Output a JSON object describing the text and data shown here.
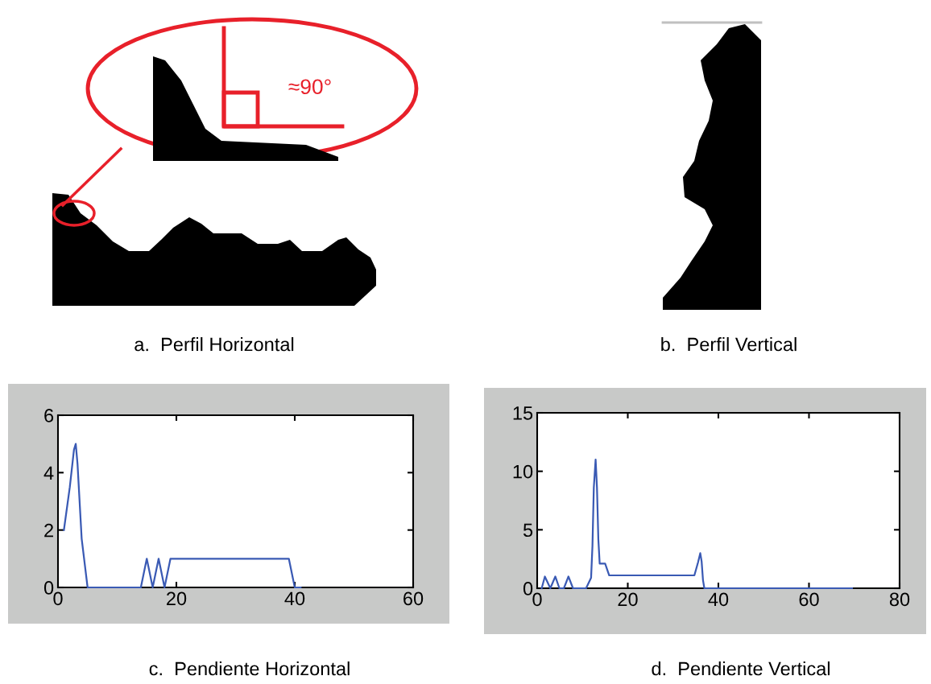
{
  "chart_data": [
    {
      "type": "other",
      "annotations": [
        "≈90°",
        "a.  Perfil Horizontal"
      ]
    },
    {
      "type": "other",
      "annotations": [
        "b.  Perfil Vertical"
      ]
    },
    {
      "type": "line",
      "x": [
        1,
        2,
        2.7,
        3,
        3.3,
        4,
        5,
        14,
        15,
        16,
        17,
        18,
        19,
        39,
        40,
        41
      ],
      "series": [
        {
          "color": "#3a5ab4",
          "values": [
            2,
            3.5,
            4.8,
            5,
            4.3,
            1.7,
            0,
            0,
            1,
            0,
            1,
            0,
            1,
            1,
            0,
            0
          ]
        }
      ],
      "xlim": [
        0,
        60
      ],
      "ylim": [
        0,
        6
      ],
      "xticks": [
        0,
        20,
        40,
        60
      ],
      "yticks": [
        0,
        2,
        4,
        6
      ],
      "grid": false,
      "annotations": [
        "c.  Pendiente Horizontal"
      ]
    },
    {
      "type": "line",
      "x": [
        1,
        1.7,
        2.9,
        4,
        4.9,
        5.9,
        6.9,
        7.9,
        10.8,
        11.9,
        12.2,
        12.5,
        12.9,
        13.2,
        13.5,
        13.8,
        15,
        15.9,
        34.7,
        35.5,
        36,
        36.3,
        36.6,
        36.9,
        69.5
      ],
      "series": [
        {
          "color": "#3a5ab4",
          "values": [
            0,
            1,
            0,
            1,
            0,
            0,
            1,
            0,
            0,
            0.9,
            3.6,
            8.6,
            11,
            8.6,
            4.2,
            2.1,
            2.1,
            1.1,
            1.1,
            2.2,
            3,
            2.3,
            0.7,
            0,
            0
          ]
        }
      ],
      "xlim": [
        0,
        80
      ],
      "ylim": [
        0,
        15
      ],
      "xticks": [
        0,
        20,
        40,
        60,
        80
      ],
      "yticks": [
        0,
        5,
        10,
        15
      ],
      "grid": false,
      "annotations": [
        "d.  Pendiente Vertical"
      ]
    }
  ]
}
